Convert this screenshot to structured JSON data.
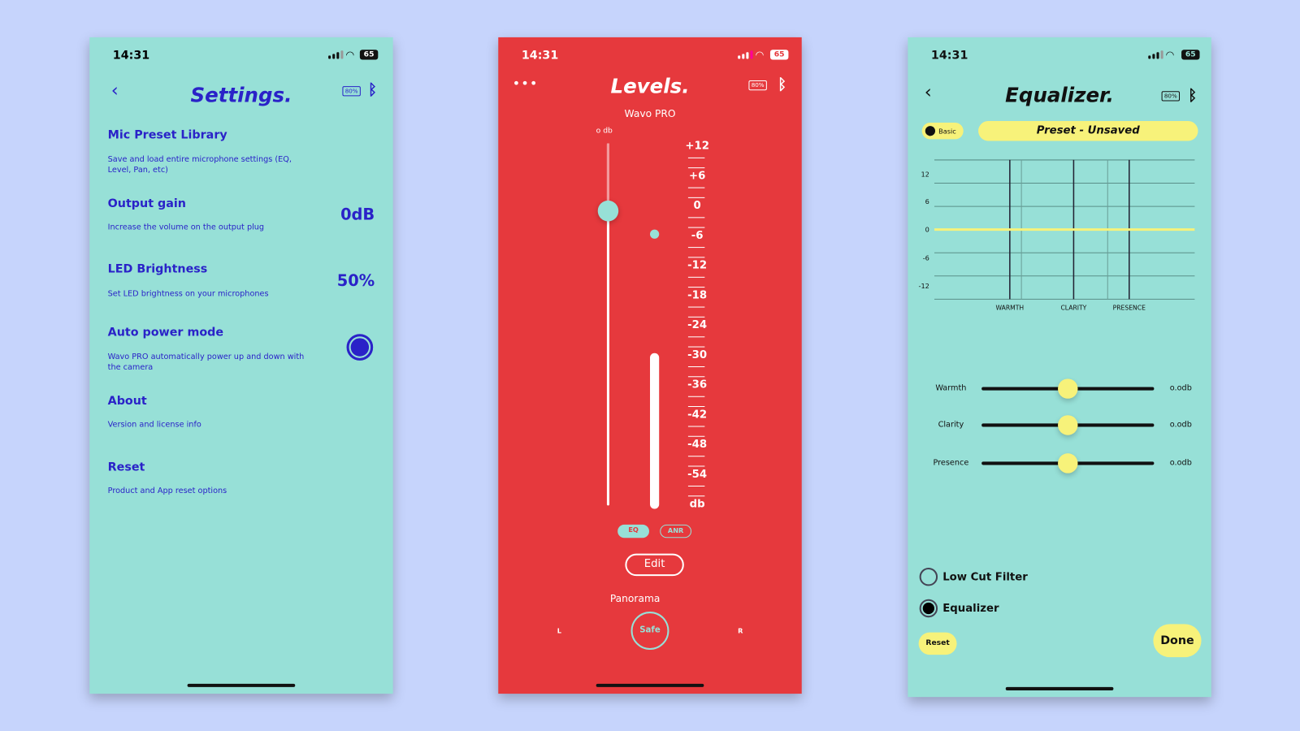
{
  "status_bar": {
    "time": "14:31",
    "battery": "65"
  },
  "device_battery": "80%",
  "colors": {
    "teal": "#97e0d7",
    "red": "#e6393d",
    "blue": "#2a22c8",
    "yellow": "#f7f27a",
    "background": "#c6d4fc"
  },
  "settings": {
    "title": "Settings.",
    "items": [
      {
        "title": "Mic Preset Library",
        "desc": "Save and load entire microphone settings (EQ, Level, Pan, etc)"
      },
      {
        "title": "Output gain",
        "desc": "Increase the volume on the output plug",
        "value": "0dB"
      },
      {
        "title": "LED Brightness",
        "desc": "Set LED brightness on your microphones",
        "value": "50%"
      },
      {
        "title": "Auto power mode",
        "desc": "Wavo PRO automatically power up and down with the camera",
        "toggle": true
      },
      {
        "title": "About",
        "desc": "Version and license info"
      },
      {
        "title": "Reset",
        "desc": "Product and App reset options"
      }
    ]
  },
  "levels": {
    "title": "Levels.",
    "device": "Wavo PRO",
    "slider_label": "o db",
    "slider_value_db": 0,
    "scale": [
      "+12",
      "+6",
      "0",
      "-6",
      "-12",
      "-18",
      "-24",
      "-30",
      "-36",
      "-42",
      "-48",
      "-54",
      "db"
    ],
    "eq_label": "EQ",
    "anr_label": "ANR",
    "edit_label": "Edit",
    "panorama_label": "Panorama",
    "pan_left": "L",
    "pan_right": "R",
    "pan_value": "Safe"
  },
  "equalizer": {
    "title": "Equalizer.",
    "mode": "Basic",
    "preset": "Preset - Unsaved",
    "chart": {
      "y_ticks": [
        "12",
        "6",
        "0",
        "-6",
        "-12"
      ],
      "x_labels": [
        "WARMTH",
        "CLARITY",
        "PRESENCE"
      ],
      "curve_db": 0
    },
    "sliders": [
      {
        "label": "Warmth",
        "value": "o.odb",
        "fraction": 0.5
      },
      {
        "label": "Clarity",
        "value": "o.odb",
        "fraction": 0.5
      },
      {
        "label": "Presence",
        "value": "o.odb",
        "fraction": 0.5
      }
    ],
    "options": [
      {
        "label": "Low Cut Filter",
        "selected": false
      },
      {
        "label": "Equalizer",
        "selected": true
      }
    ],
    "reset_label": "Reset",
    "done_label": "Done"
  }
}
